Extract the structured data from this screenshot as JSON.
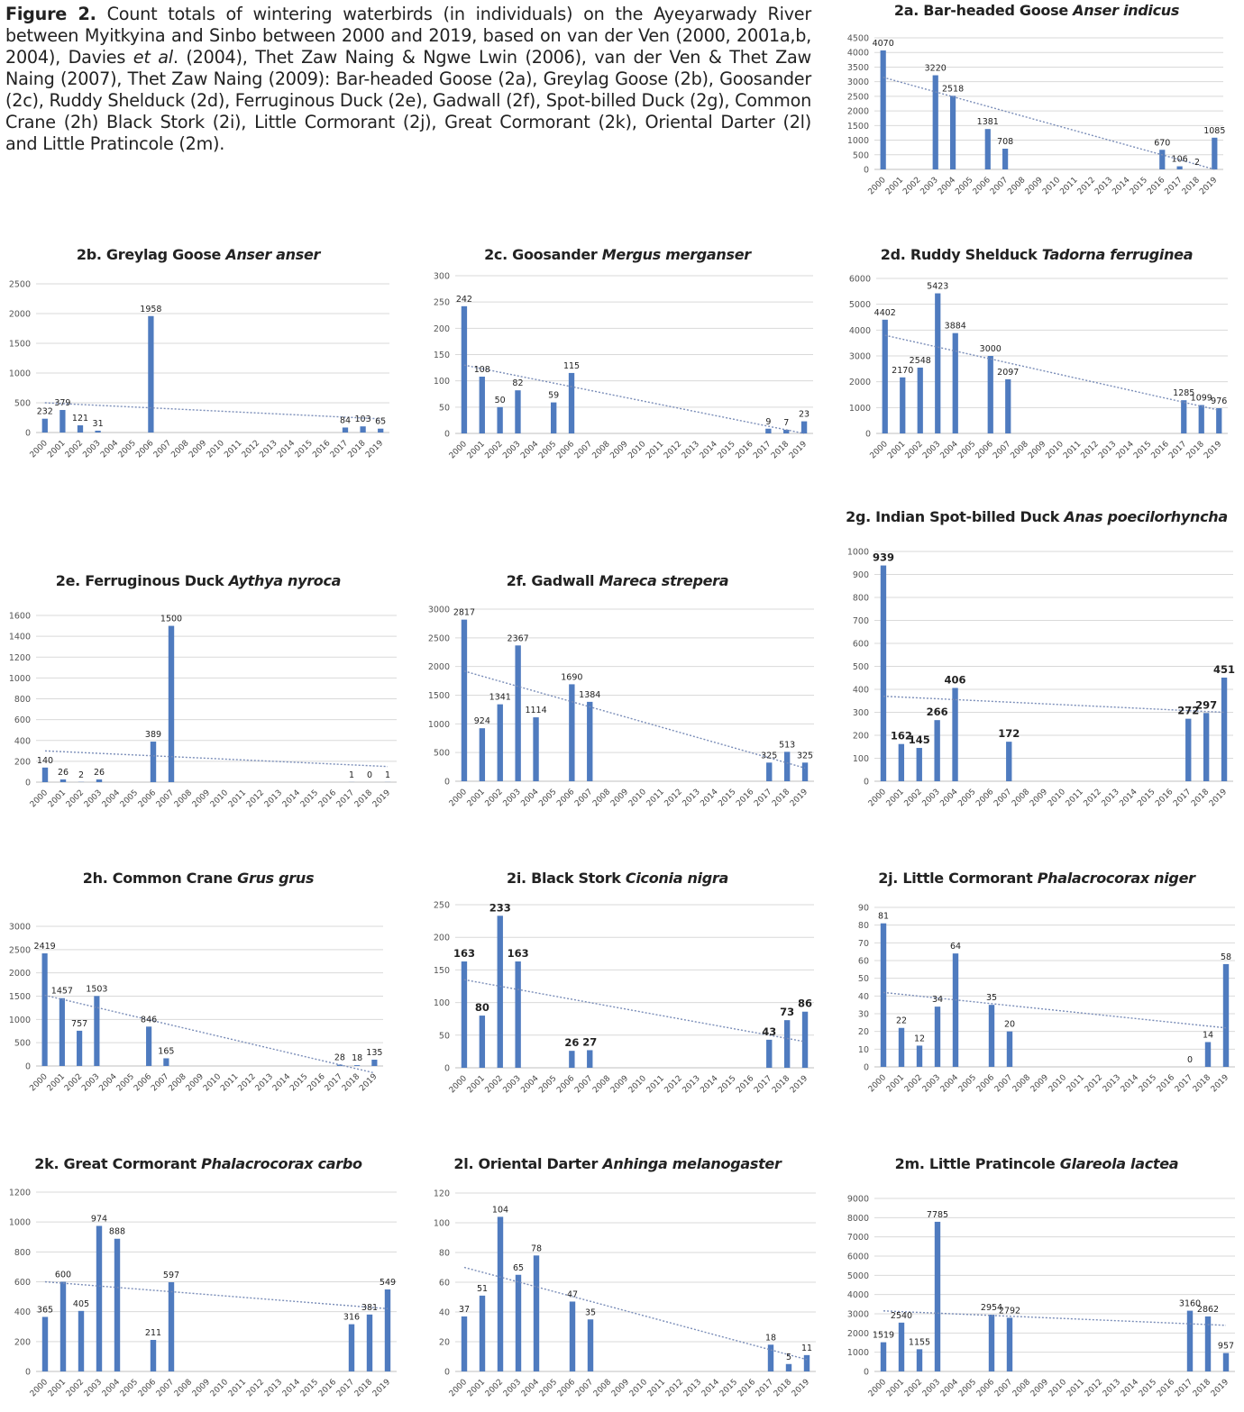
{
  "caption": {
    "label": "Figure 2.",
    "parts": [
      " Count totals of wintering waterbirds (in individuals) on the Ayeyarwady River between Myitkyina and Sinbo between 2000 and 2019, based on van der Ven (2000, 2001a,b, 2004), Davies ",
      "et al",
      ". (2004), Thet Zaw Naing & Ngwe Lwin (2006), van der Ven & Thet Zaw Naing (2007), Thet Zaw Naing (2009): Bar-headed Goose (2a), Greylag Goose (2b), Goosander (2c), Ruddy Shelduck (2d), Ferruginous Duck (2e), Gadwall (2f), Spot-billed Duck (2g), Common Crane (2h) Black Stork (2i), Little Cormorant (2j), Great Cormorant (2k), Oriental Darter (2l) and Little Pratincole (2m)."
    ]
  },
  "colors": {
    "bar": "#4f7bbf",
    "trend": "#7a8db8",
    "grid": "#d9d9d9",
    "axis": "#bfbfbf"
  },
  "chart_data": [
    {
      "id": "2a",
      "type": "bar",
      "title": "2a. Bar-headed Goose",
      "title_latin": "Anser indicus",
      "categories": [
        "2000",
        "2001",
        "2002",
        "2003",
        "2004",
        "2005",
        "2006",
        "2007",
        "2008",
        "2009",
        "2010",
        "2011",
        "2012",
        "2013",
        "2014",
        "2015",
        "2016",
        "2017",
        "2018",
        "2019"
      ],
      "values": [
        4070,
        null,
        null,
        3220,
        2518,
        null,
        1381,
        708,
        null,
        null,
        null,
        null,
        null,
        null,
        null,
        null,
        670,
        106,
        2,
        1085
      ],
      "ylim": [
        0,
        4500
      ],
      "ystep": 500,
      "trendline": [
        3150,
        0
      ],
      "grid": true
    },
    {
      "id": "2b",
      "type": "bar",
      "title": "2b. Greylag Goose",
      "title_latin": "Anser anser",
      "categories": [
        "2000",
        "2001",
        "2002",
        "2003",
        "2004",
        "2005",
        "2006",
        "2007",
        "2008",
        "2009",
        "2010",
        "2011",
        "2012",
        "2013",
        "2014",
        "2015",
        "2016",
        "2017",
        "2018",
        "2019"
      ],
      "values": [
        232,
        379,
        121,
        31,
        null,
        null,
        1958,
        null,
        null,
        null,
        null,
        null,
        null,
        null,
        null,
        null,
        null,
        84,
        103,
        65
      ],
      "ylim": [
        0,
        2500
      ],
      "ystep": 500,
      "trendline": [
        500,
        230
      ],
      "grid": true
    },
    {
      "id": "2c",
      "type": "bar",
      "title": "2c. Goosander",
      "title_latin": "Mergus merganser",
      "categories": [
        "2000",
        "2001",
        "2002",
        "2003",
        "2004",
        "2005",
        "2006",
        "2007",
        "2008",
        "2009",
        "2010",
        "2011",
        "2012",
        "2013",
        "2014",
        "2015",
        "2016",
        "2017",
        "2018",
        "2019"
      ],
      "values": [
        242,
        108,
        50,
        82,
        null,
        59,
        115,
        null,
        null,
        null,
        null,
        null,
        null,
        null,
        null,
        null,
        null,
        9,
        7,
        23
      ],
      "ylim": [
        0,
        300
      ],
      "ystep": 50,
      "trendline": [
        130,
        0
      ],
      "grid": true
    },
    {
      "id": "2d",
      "type": "bar",
      "title": "2d. Ruddy Shelduck",
      "title_latin": "Tadorna ferruginea",
      "categories": [
        "2000",
        "2001",
        "2002",
        "2003",
        "2004",
        "2005",
        "2006",
        "2007",
        "2008",
        "2009",
        "2010",
        "2011",
        "2012",
        "2013",
        "2014",
        "2015",
        "2016",
        "2017",
        "2018",
        "2019"
      ],
      "values": [
        4402,
        2170,
        2548,
        5423,
        3884,
        null,
        3000,
        2097,
        null,
        null,
        null,
        null,
        null,
        null,
        null,
        null,
        null,
        1285,
        1099,
        976
      ],
      "ylim": [
        0,
        6000
      ],
      "ystep": 1000,
      "trendline": [
        3800,
        900
      ],
      "grid": true
    },
    {
      "id": "2e",
      "type": "bar",
      "title": "2e. Ferruginous Duck",
      "title_latin": "Aythya nyroca",
      "categories": [
        "2000",
        "2001",
        "2002",
        "2003",
        "2004",
        "2005",
        "2006",
        "2007",
        "2008",
        "2009",
        "2010",
        "2011",
        "2012",
        "2013",
        "2014",
        "2015",
        "2016",
        "2017",
        "2018",
        "2019"
      ],
      "values": [
        140,
        26,
        2,
        26,
        null,
        null,
        389,
        1500,
        null,
        null,
        null,
        null,
        null,
        null,
        null,
        null,
        null,
        1,
        0,
        1
      ],
      "ylim": [
        0,
        1600
      ],
      "ystep": 200,
      "trendline": [
        300,
        150
      ],
      "grid": true
    },
    {
      "id": "2f",
      "type": "bar",
      "title": "2f. Gadwall",
      "title_latin": "Mareca strepera",
      "categories": [
        "2000",
        "2001",
        "2002",
        "2003",
        "2004",
        "2005",
        "2006",
        "2007",
        "2008",
        "2009",
        "2010",
        "2011",
        "2012",
        "2013",
        "2014",
        "2015",
        "2016",
        "2017",
        "2018",
        "2019"
      ],
      "values": [
        2817,
        924,
        1341,
        2367,
        1114,
        null,
        1690,
        1384,
        null,
        null,
        null,
        null,
        null,
        null,
        null,
        null,
        null,
        325,
        513,
        325
      ],
      "ylim": [
        0,
        3000
      ],
      "ystep": 500,
      "trendline": [
        1920,
        230
      ],
      "grid": true
    },
    {
      "id": "2g",
      "type": "bar",
      "title": "2g. Indian Spot-billed Duck",
      "title_latin": "Anas poecilorhyncha",
      "categories": [
        "2000",
        "2001",
        "2002",
        "2003",
        "2004",
        "2005",
        "2006",
        "2007",
        "2008",
        "2009",
        "2010",
        "2011",
        "2012",
        "2013",
        "2014",
        "2015",
        "2016",
        "2017",
        "2018",
        "2019"
      ],
      "values": [
        939,
        162,
        145,
        266,
        406,
        null,
        null,
        172,
        null,
        null,
        null,
        null,
        null,
        null,
        null,
        null,
        null,
        272,
        297,
        451
      ],
      "ylim": [
        0,
        1000
      ],
      "ystep": 100,
      "trendline": [
        370,
        300
      ],
      "grid": true,
      "big_labels": true
    },
    {
      "id": "2h",
      "type": "bar",
      "title": "2h. Common Crane",
      "title_latin": "Grus grus",
      "categories": [
        "2000",
        "2001",
        "2002",
        "2003",
        "2004",
        "2005",
        "2006",
        "2007",
        "2008",
        "2009",
        "2010",
        "2011",
        "2012",
        "2013",
        "2014",
        "2015",
        "2016",
        "2017",
        "2018",
        "2019"
      ],
      "values": [
        2419,
        1457,
        757,
        1503,
        null,
        null,
        846,
        165,
        null,
        null,
        null,
        null,
        null,
        null,
        null,
        null,
        null,
        28,
        18,
        135
      ],
      "ylim": [
        0,
        3000
      ],
      "ystep": 500,
      "trendline": [
        1520,
        -150
      ],
      "grid": true
    },
    {
      "id": "2i",
      "type": "bar",
      "title": "2i. Black Stork",
      "title_latin": "Ciconia nigra",
      "categories": [
        "2000",
        "2001",
        "2002",
        "2003",
        "2004",
        "2005",
        "2006",
        "2007",
        "2008",
        "2009",
        "2010",
        "2011",
        "2012",
        "2013",
        "2014",
        "2015",
        "2016",
        "2017",
        "2018",
        "2019"
      ],
      "values": [
        163,
        80,
        233,
        163,
        null,
        null,
        26,
        27,
        null,
        null,
        null,
        null,
        null,
        null,
        null,
        null,
        null,
        43,
        73,
        86
      ],
      "ylim": [
        0,
        250
      ],
      "ystep": 50,
      "trendline": [
        135,
        40
      ],
      "grid": true,
      "big_labels": true
    },
    {
      "id": "2j",
      "type": "bar",
      "title": "2j. Little Cormorant",
      "title_latin": "Phalacrocorax niger",
      "categories": [
        "2000",
        "2001",
        "2002",
        "2003",
        "2004",
        "2005",
        "2006",
        "2007",
        "2008",
        "2009",
        "2010",
        "2011",
        "2012",
        "2013",
        "2014",
        "2015",
        "2016",
        "2017",
        "2018",
        "2019"
      ],
      "values": [
        81,
        22,
        12,
        34,
        64,
        null,
        35,
        20,
        null,
        null,
        null,
        null,
        null,
        null,
        null,
        null,
        null,
        0,
        14,
        58
      ],
      "ylim": [
        0,
        90
      ],
      "ystep": 10,
      "trendline": [
        42,
        22
      ],
      "grid": true
    },
    {
      "id": "2k",
      "type": "bar",
      "title": "2k. Great Cormorant",
      "title_latin": "Phalacrocorax carbo",
      "categories": [
        "2000",
        "2001",
        "2002",
        "2003",
        "2004",
        "2005",
        "2006",
        "2007",
        "2008",
        "2009",
        "2010",
        "2011",
        "2012",
        "2013",
        "2014",
        "2015",
        "2016",
        "2017",
        "2018",
        "2019"
      ],
      "values": [
        365,
        600,
        405,
        974,
        888,
        null,
        211,
        597,
        null,
        null,
        null,
        null,
        null,
        null,
        null,
        null,
        null,
        316,
        381,
        549
      ],
      "ylim": [
        0,
        1200
      ],
      "ystep": 200,
      "trendline": [
        600,
        420
      ],
      "grid": true
    },
    {
      "id": "2l",
      "type": "bar",
      "title": "2l. Oriental Darter",
      "title_latin": "Anhinga melanogaster",
      "categories": [
        "2000",
        "2001",
        "2002",
        "2003",
        "2004",
        "2005",
        "2006",
        "2007",
        "2008",
        "2009",
        "2010",
        "2011",
        "2012",
        "2013",
        "2014",
        "2015",
        "2016",
        "2017",
        "2018",
        "2019"
      ],
      "values": [
        37,
        51,
        104,
        65,
        78,
        null,
        47,
        35,
        null,
        null,
        null,
        null,
        null,
        null,
        null,
        null,
        null,
        18,
        5,
        11
      ],
      "ylim": [
        0,
        120
      ],
      "ystep": 20,
      "trendline": [
        70,
        8
      ],
      "grid": true
    },
    {
      "id": "2m",
      "type": "bar",
      "title": "2m. Little Pratincole",
      "title_latin": "Glareola lactea",
      "categories": [
        "2000",
        "2001",
        "2002",
        "2003",
        "2004",
        "2005",
        "2006",
        "2007",
        "2008",
        "2009",
        "2010",
        "2011",
        "2012",
        "2013",
        "2014",
        "2015",
        "2016",
        "2017",
        "2018",
        "2019"
      ],
      "values": [
        1519,
        2540,
        1155,
        7785,
        null,
        null,
        2954,
        2792,
        null,
        null,
        null,
        null,
        null,
        null,
        null,
        null,
        null,
        3160,
        2862,
        957
      ],
      "ylim": [
        0,
        9000
      ],
      "ystep": 1000,
      "trendline": [
        3150,
        2400
      ],
      "grid": true
    }
  ]
}
